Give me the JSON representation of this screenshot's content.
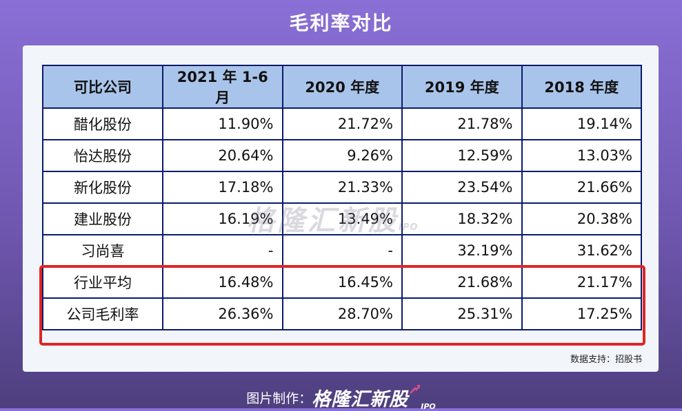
{
  "title": "毛利率对比",
  "table": {
    "headers": [
      "可比公司",
      "2021 年 1-6 月",
      "2020 年度",
      "2019 年度",
      "2018 年度"
    ],
    "rows": [
      [
        "醋化股份",
        "11.90%",
        "21.72%",
        "21.78%",
        "19.14%"
      ],
      [
        "怡达股份",
        "20.64%",
        "9.26%",
        "12.59%",
        "13.03%"
      ],
      [
        "新化股份",
        "17.18%",
        "21.33%",
        "23.54%",
        "21.66%"
      ],
      [
        "建业股份",
        "16.19%",
        "13.49%",
        "18.32%",
        "20.38%"
      ],
      [
        "习尚喜",
        "-",
        "-",
        "32.19%",
        "31.62%"
      ],
      [
        "行业平均",
        "16.48%",
        "16.45%",
        "21.68%",
        "21.17%"
      ],
      [
        "公司毛利率",
        "26.36%",
        "28.70%",
        "25.31%",
        "17.25%"
      ]
    ]
  },
  "watermark": {
    "text": "格隆汇新股",
    "ipo": "IPO"
  },
  "source_note": "数据支持：招股书",
  "footer": {
    "label": "图片制作：",
    "brand": "格隆汇新股",
    "ipo": "IPO"
  },
  "colors": {
    "header_bg": "#a9c4ea",
    "border": "#0c1a6b",
    "highlight": "#e02525"
  }
}
